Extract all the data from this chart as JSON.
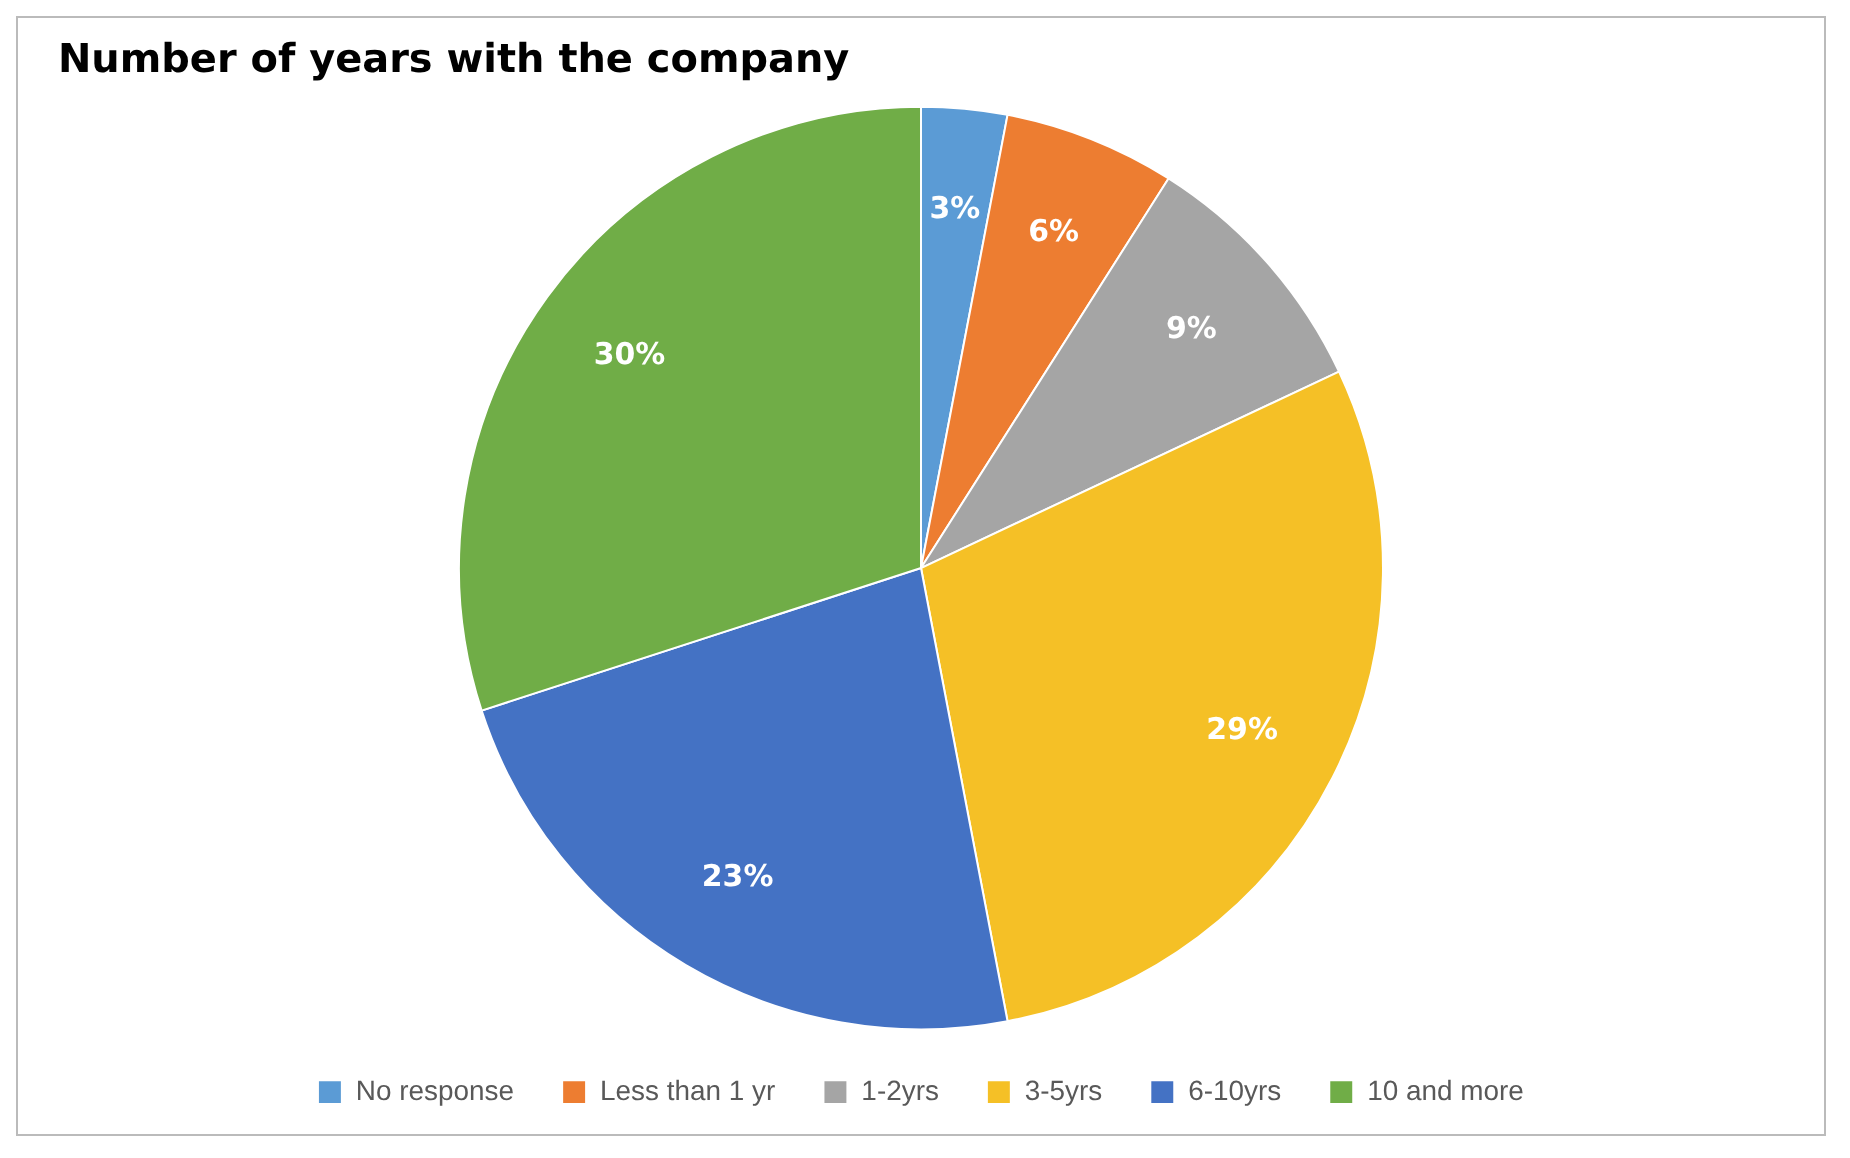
{
  "chart_data": {
    "type": "pie",
    "title": "Number of years with the company",
    "categories": [
      "No response",
      "Less than 1 yr",
      "1-2yrs",
      "3-5yrs",
      "6-10yrs",
      "10 and more"
    ],
    "values": [
      3,
      6,
      9,
      29,
      23,
      30
    ],
    "value_labels": [
      "3%",
      "6%",
      "9%",
      "29%",
      "23%",
      "30%"
    ],
    "colors": [
      "#5b9bd5",
      "#ed7d31",
      "#a5a5a5",
      "#f5c026",
      "#4472c4",
      "#70ad47"
    ],
    "legend": "bottom"
  }
}
